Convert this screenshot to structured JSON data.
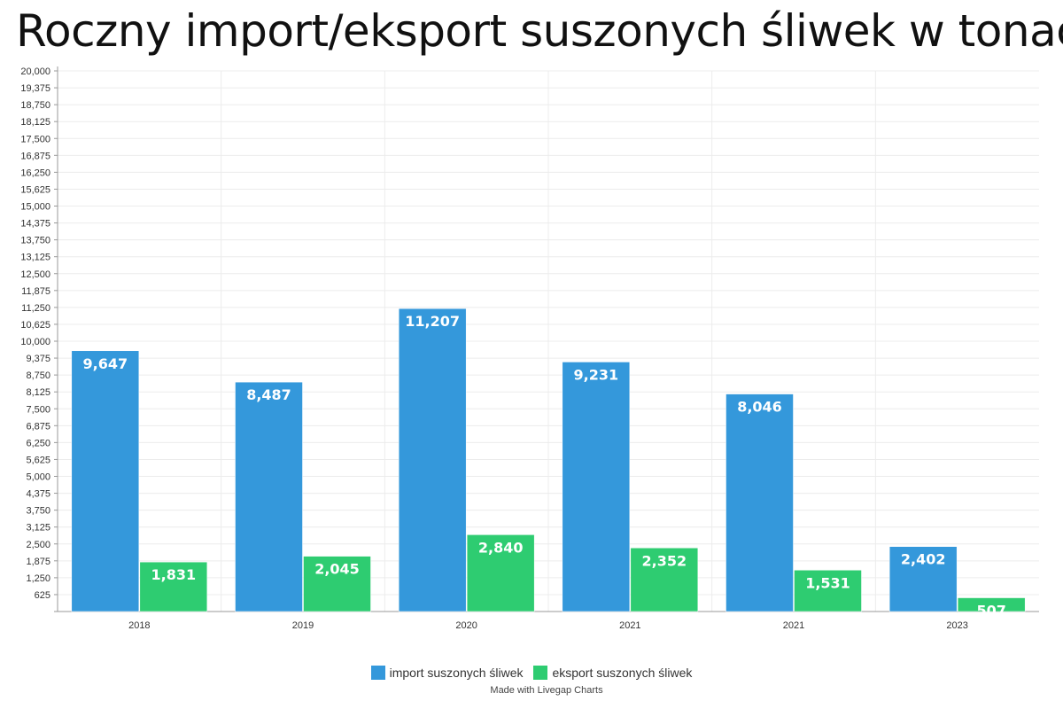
{
  "chart_data": {
    "type": "bar",
    "title": "Roczny import/eksport suszonych śliwek w tonach",
    "categories": [
      "2018",
      "2019",
      "2020",
      "2021",
      "2021",
      "2023"
    ],
    "series": [
      {
        "name": "import suszonych śliwek",
        "color": "#3498db",
        "values": [
          9647,
          8487,
          11207,
          9231,
          8046,
          2402
        ],
        "labels": [
          "9,647",
          "8,487",
          "11,207",
          "9,231",
          "8,046",
          "2,402"
        ]
      },
      {
        "name": "eksport suszonych śliwek",
        "color": "#2ecc71",
        "values": [
          1831,
          2045,
          2840,
          2352,
          1531,
          507
        ],
        "labels": [
          "1,831",
          "2,045",
          "2,840",
          "2,352",
          "1,531",
          "507"
        ]
      }
    ],
    "ylim": [
      0,
      20000
    ],
    "yticks": [
      625,
      1250,
      1875,
      2500,
      3125,
      3750,
      4375,
      5000,
      5625,
      6250,
      6875,
      7500,
      8125,
      8750,
      9375,
      10000,
      10625,
      11250,
      11875,
      12500,
      13125,
      13750,
      14375,
      15000,
      15625,
      16250,
      16875,
      17500,
      18125,
      18750,
      19375,
      20000
    ],
    "ytick_labels": [
      "625",
      "1,250",
      "1,875",
      "2,500",
      "3,125",
      "3,750",
      "4,375",
      "5,000",
      "5,625",
      "6,250",
      "6,875",
      "7,500",
      "8,125",
      "8,750",
      "9,375",
      "10,000",
      "10,625",
      "11,250",
      "11,875",
      "12,500",
      "13,125",
      "13,750",
      "14,375",
      "15,000",
      "15,625",
      "16,250",
      "16,875",
      "17,500",
      "18,125",
      "18,750",
      "19,375",
      "20,000"
    ],
    "xlabel": "",
    "ylabel": "",
    "grid": true,
    "legend_position": "bottom"
  },
  "footer": {
    "credit": "Made with Livegap Charts"
  }
}
